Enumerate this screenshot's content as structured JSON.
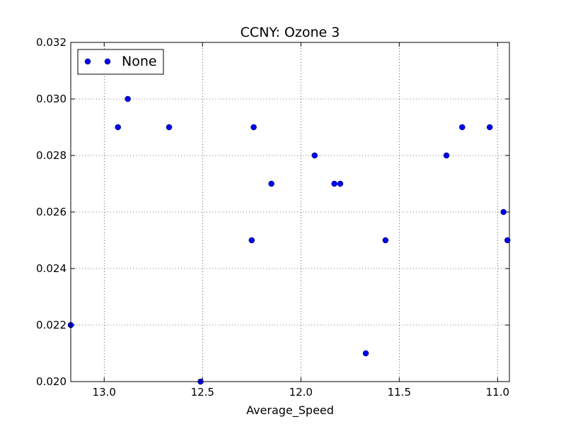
{
  "chart_data": {
    "type": "scatter",
    "title": "CCNY: Ozone 3",
    "xlabel": "Average_Speed",
    "ylabel": "",
    "xlim": [
      13.17,
      10.94
    ],
    "ylim": [
      0.02,
      0.032
    ],
    "x_inverted": true,
    "grid": true,
    "x_ticks": [
      13.0,
      12.5,
      12.0,
      11.5,
      11.0
    ],
    "x_tick_labels": [
      "13.0",
      "12.5",
      "12.0",
      "11.5",
      "11.0"
    ],
    "y_ticks": [
      0.02,
      0.022,
      0.024,
      0.026,
      0.028,
      0.03,
      0.032
    ],
    "y_tick_labels": [
      "0.020",
      "0.022",
      "0.024",
      "0.026",
      "0.028",
      "0.030",
      "0.032"
    ],
    "legend": {
      "position": "top-left",
      "entries": [
        "None"
      ]
    },
    "marker_color": "#0000ff",
    "series": [
      {
        "name": "None",
        "points": [
          {
            "x": 13.17,
            "y": 0.022
          },
          {
            "x": 12.93,
            "y": 0.029
          },
          {
            "x": 12.88,
            "y": 0.03
          },
          {
            "x": 12.67,
            "y": 0.029
          },
          {
            "x": 12.51,
            "y": 0.02
          },
          {
            "x": 12.25,
            "y": 0.025
          },
          {
            "x": 12.24,
            "y": 0.029
          },
          {
            "x": 12.15,
            "y": 0.027
          },
          {
            "x": 11.93,
            "y": 0.028
          },
          {
            "x": 11.83,
            "y": 0.027
          },
          {
            "x": 11.8,
            "y": 0.027
          },
          {
            "x": 11.67,
            "y": 0.021
          },
          {
            "x": 11.57,
            "y": 0.025
          },
          {
            "x": 11.26,
            "y": 0.028
          },
          {
            "x": 11.18,
            "y": 0.029
          },
          {
            "x": 11.04,
            "y": 0.029
          },
          {
            "x": 10.97,
            "y": 0.026
          },
          {
            "x": 10.95,
            "y": 0.025
          }
        ]
      }
    ]
  }
}
